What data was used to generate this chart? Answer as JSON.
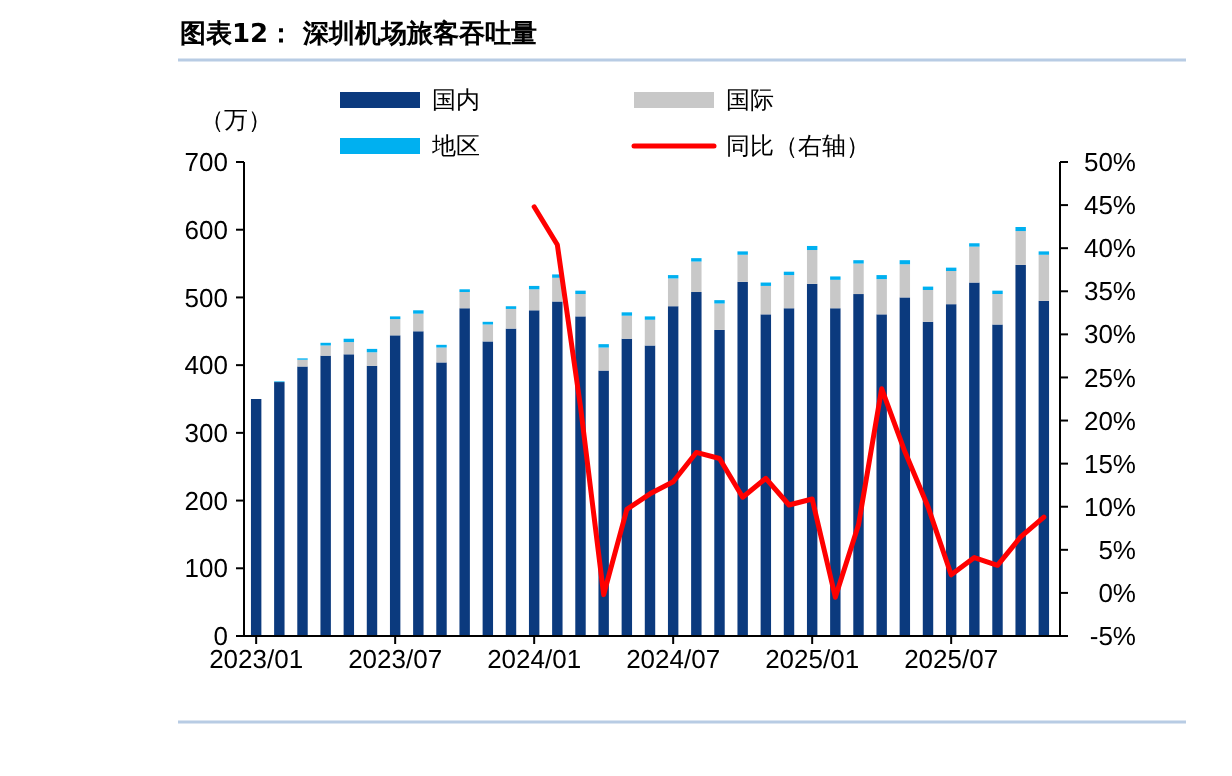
{
  "chart_data": {
    "type": "bar",
    "title": "图表12： 深圳机场旅客吞吐量",
    "ylabel": "（万）",
    "stacked": true,
    "legend": "top",
    "categories": [
      "2023/01",
      null,
      null,
      null,
      null,
      null,
      "2023/07",
      null,
      null,
      null,
      null,
      null,
      "2024/01",
      null,
      null,
      null,
      null,
      null,
      "2024/07",
      null,
      null,
      null,
      null,
      null,
      "2025/01",
      null,
      null,
      null,
      null,
      null,
      "2025/07",
      null,
      null,
      null,
      null
    ],
    "series": [
      {
        "name": "国内",
        "color": "#0b3a7e",
        "values": [
          350,
          375,
          398,
          414,
          416,
          399,
          444,
          450,
          404,
          484,
          435,
          454,
          481,
          494,
          472,
          392,
          439,
          429,
          487,
          508,
          452,
          523,
          475,
          484,
          520,
          484,
          505,
          475,
          500,
          464,
          490,
          522,
          460,
          548,
          495
        ]
      },
      {
        "name": "国际",
        "color": "#c8c8c8",
        "values": [
          null,
          null,
          10,
          15,
          18,
          20,
          24,
          26,
          22,
          24,
          25,
          29,
          31,
          35,
          33,
          34,
          34,
          38,
          41,
          45,
          39,
          40,
          42,
          49,
          50,
          42,
          45,
          52,
          49,
          47,
          49,
          53,
          45,
          50,
          68
        ]
      },
      {
        "name": "地区",
        "color": "#00b0f0",
        "values": [
          null,
          1,
          2,
          4,
          5,
          5,
          4,
          5,
          4,
          4,
          4,
          4,
          5,
          5,
          5,
          5,
          5,
          5,
          5,
          5,
          5,
          5,
          5,
          5,
          6,
          5,
          5,
          6,
          6,
          5,
          5,
          5,
          5,
          6,
          5
        ]
      },
      {
        "name": "同比（右轴）",
        "type": "line",
        "axis": "y2",
        "color": "#ff0000",
        "values": [
          null,
          null,
          null,
          null,
          null,
          null,
          null,
          null,
          null,
          null,
          null,
          null,
          44.8,
          40.4,
          21.6,
          -0.2,
          9.7,
          11.5,
          12.9,
          16.3,
          15.6,
          11.1,
          13.3,
          10.2,
          10.9,
          -0.5,
          7.9,
          23.7,
          16.4,
          10.0,
          2.1,
          4.1,
          3.2,
          6.5,
          8.8
        ]
      }
    ],
    "ylim": [
      0,
      700
    ],
    "yticks": [
      0,
      100,
      200,
      300,
      400,
      500,
      600,
      700
    ],
    "y2lim": [
      -5,
      50
    ],
    "y2ticks": [
      {
        "value": -5,
        "label": "-5%"
      },
      {
        "value": 0,
        "label": "0%"
      },
      {
        "value": 5,
        "label": "5%"
      },
      {
        "value": 10,
        "label": "10%"
      },
      {
        "value": 15,
        "label": "15%"
      },
      {
        "value": 20,
        "label": "20%"
      },
      {
        "value": 25,
        "label": "25%"
      },
      {
        "value": 30,
        "label": "30%"
      },
      {
        "value": 35,
        "label": "35%"
      },
      {
        "value": 40,
        "label": "40%"
      },
      {
        "value": 45,
        "label": "45%"
      },
      {
        "value": 50,
        "label": "50%"
      }
    ]
  }
}
